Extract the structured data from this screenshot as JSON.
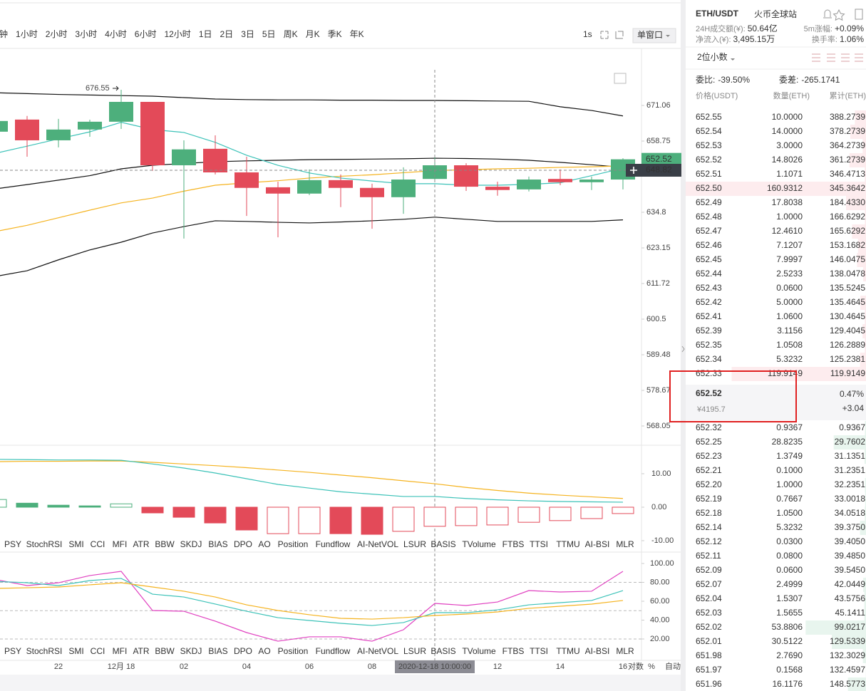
{
  "toolbar": {
    "periods": [
      "钟",
      "1小时",
      "2小时",
      "3小时",
      "4小时",
      "6小时",
      "12小时",
      "1日",
      "2日",
      "3日",
      "5日",
      "周K",
      "月K",
      "季K",
      "年K"
    ],
    "active": 1,
    "refresh": "1s",
    "window": "单窗口"
  },
  "kline": {
    "type": "candlestick",
    "log": true,
    "ylim": [
      562.4,
      683.6
    ],
    "yticks": [
      671.06,
      658.75,
      634.8,
      623.15,
      611.72,
      600.5,
      589.48,
      578.67,
      568.05
    ],
    "categories": [
      null,
      null,
      "22",
      null,
      "12月 18",
      null,
      "02",
      null,
      "04",
      null,
      "06",
      null,
      "08",
      null,
      "2020-12-18 10:00:00",
      null,
      "12",
      null,
      "14",
      null,
      "16"
    ],
    "open": [
      661.96,
      666.14,
      659.0,
      662.7,
      665.4,
      672.3,
      650.5,
      656.1,
      648.1,
      643.1,
      641.0,
      645.5,
      642.9,
      639.8,
      645.9,
      650.5,
      643.3,
      642.4,
      645.9,
      644.8,
      645.7
    ],
    "high": [
      668.1,
      667.4,
      666.4,
      666.1,
      676.55,
      672.3,
      659.0,
      660.7,
      653.4,
      645.0,
      649.1,
      647.4,
      644.3,
      649.8,
      653.9,
      651.2,
      645.0,
      646.7,
      649.1,
      646.7,
      652.9
    ],
    "low": [
      659.5,
      653.4,
      656.6,
      660.2,
      662.9,
      648.6,
      626.2,
      647.4,
      633.6,
      626.6,
      640.5,
      636.5,
      629.4,
      634.3,
      645.7,
      641.9,
      640.3,
      641.7,
      643.8,
      642.2,
      642.4
    ],
    "close": [
      665.65,
      659.0,
      662.7,
      665.4,
      672.3,
      650.5,
      655.9,
      648.1,
      642.9,
      641.0,
      645.5,
      642.9,
      639.8,
      645.7,
      650.5,
      643.3,
      642.2,
      645.7,
      644.8,
      645.7,
      652.52
    ],
    "up_color": "#4daf7c",
    "down_color": "#e34a59",
    "lines": [
      {
        "color": "#111111",
        "values": [
          675.5,
          675.2,
          674.9,
          674.7,
          674.5,
          674.3,
          673.8,
          673.3,
          673.1,
          673.0,
          673.0,
          672.9,
          672.9,
          672.8,
          672.8,
          672.7,
          672.6,
          672.5,
          670.6,
          669.3,
          667.4
        ]
      },
      {
        "color": "#111111",
        "values": [
          642.6,
          644.0,
          645.5,
          647.0,
          649.3,
          650.5,
          651.1,
          651.7,
          652.0,
          652.2,
          652.4,
          652.5,
          652.6,
          652.7,
          652.9,
          652.8,
          652.6,
          652.2,
          651.5,
          650.7,
          649.8
        ]
      },
      {
        "color": "#111111",
        "values": [
          614.0,
          615.8,
          619.3,
          622.5,
          625.0,
          628.0,
          630.1,
          632.0,
          631.8,
          631.5,
          631.3,
          631.6,
          632.0,
          632.5,
          633.2,
          632.5,
          631.8,
          631.8,
          631.8,
          631.8,
          632.3
        ]
      },
      {
        "color": "#f5b31f",
        "values": [
          628.5,
          630.5,
          633.0,
          635.5,
          637.9,
          639.5,
          641.8,
          643.8,
          644.6,
          645.3,
          646.2,
          646.8,
          647.3,
          648.0,
          648.7,
          649.0,
          649.3,
          649.5,
          649.8,
          650.0,
          650.3
        ]
      },
      {
        "color": "#3cc2b8",
        "values": [
          654.6,
          657.0,
          659.5,
          661.9,
          665.2,
          662.7,
          661.7,
          658.3,
          653.9,
          650.5,
          647.9,
          646.2,
          645.2,
          644.3,
          644.3,
          643.8,
          643.8,
          644.1,
          644.6,
          647.0,
          649.5
        ]
      }
    ],
    "last": 652.52,
    "crosshair_price": 648.82,
    "crosshair_index": 14
  },
  "macd": {
    "ylim": [
      -13.4,
      18.5
    ],
    "yticks": [
      {
        "value": 10,
        "label": "10.00"
      },
      {
        "value": 0,
        "label": "0.00"
      },
      {
        "value": -10,
        "label": "-10.00"
      }
    ],
    "histogram": [
      2.3,
      1.2,
      0.6,
      0.4,
      1.0,
      -1.7,
      -3.0,
      -4.7,
      -6.8,
      -7.9,
      -7.9,
      -7.9,
      -8.1,
      -7.2,
      -5.7,
      -5.5,
      -5.3,
      -4.5,
      -4.0,
      -3.4,
      -1.9
    ],
    "filled": [
      false,
      true,
      true,
      true,
      false,
      true,
      true,
      true,
      true,
      false,
      false,
      true,
      true,
      false,
      false,
      false,
      false,
      false,
      false,
      false,
      false
    ],
    "series": [
      {
        "color": "#f5b31f",
        "values": [
          13.6,
          13.7,
          13.7,
          13.8,
          13.8,
          13.4,
          12.9,
          12.4,
          11.8,
          11.1,
          10.4,
          9.6,
          8.8,
          7.9,
          7.0,
          5.9,
          5.0,
          4.2,
          3.6,
          3.1,
          2.6
        ]
      },
      {
        "color": "#3cc2b8",
        "values": [
          14.3,
          14.2,
          14.1,
          14.1,
          14.0,
          12.9,
          11.7,
          10.2,
          8.5,
          6.8,
          5.7,
          4.6,
          3.9,
          3.2,
          3.2,
          2.6,
          2.2,
          1.9,
          1.7,
          1.6,
          1.5
        ]
      }
    ]
  },
  "osc": {
    "ylim": [
      -4.9,
      108.3
    ],
    "yticks": [
      {
        "value": 100,
        "label": "100.00"
      },
      {
        "value": 80,
        "label": "80.00"
      },
      {
        "value": 60,
        "label": "60.00"
      },
      {
        "value": 40,
        "label": "40.00"
      },
      {
        "value": 20,
        "label": "20.00"
      }
    ],
    "levels": [
      80,
      50,
      20
    ],
    "series": [
      {
        "color": "#e040c0",
        "values": [
          83.0,
          76.6,
          79.6,
          87.2,
          91.7,
          50.2,
          49.4,
          38.9,
          26.8,
          17.7,
          22.3,
          22.3,
          17.7,
          29.8,
          57.7,
          55.5,
          59.2,
          71.3,
          69.8,
          70.6,
          91.7
        ]
      },
      {
        "color": "#3cc2b8",
        "values": [
          81.0,
          79.6,
          76.6,
          81.9,
          84.2,
          67.5,
          64.5,
          57.0,
          49.4,
          42.6,
          39.6,
          36.6,
          34.3,
          37.4,
          47.9,
          47.9,
          50.9,
          56.2,
          58.5,
          60.8,
          71.3
        ]
      },
      {
        "color": "#f5b31f",
        "values": [
          73.6,
          74.3,
          75.1,
          77.4,
          79.6,
          75.1,
          70.6,
          64.5,
          56.2,
          50.2,
          45.7,
          41.9,
          41.1,
          42.6,
          44.9,
          46.4,
          48.7,
          52.5,
          54.7,
          57.0,
          60.8
        ]
      }
    ]
  },
  "indicators": [
    "PSY",
    "StochRSI",
    "SMI",
    "CCI",
    "MFI",
    "ATR",
    "BBW",
    "SKDJ",
    "BIAS",
    "DPO",
    "AO",
    "Position",
    "Fundflow",
    "AI-NetVOL",
    "LSUR",
    "BASIS",
    "TVolume",
    "FTBS",
    "TTSI",
    "TTMU",
    "AI-BSI",
    "MLR"
  ],
  "scale_options": [
    "对数",
    "%",
    "自动"
  ],
  "market": {
    "pair": "ETH/USDT",
    "exchange": "火币全球站",
    "turnover_label": "24H成交额(¥):",
    "turnover": "50.64亿",
    "change_label": "5m涨幅:",
    "change": "+0.09%",
    "inflow_label": "净流入(¥):",
    "inflow": "3,495.15万",
    "rate_label": "换手率:",
    "rate": "1.06%"
  },
  "orderbook": {
    "precision": "2位小数",
    "ratio_label": "委比:",
    "ratio": "-39.50%",
    "diff_label": "委差:",
    "diff": "-265.1741",
    "columns": [
      "价格(USDT)",
      "数量(ETH)",
      "累计(ETH)"
    ],
    "asks": [
      [
        "652.55",
        "10.0000",
        "388.2739"
      ],
      [
        "652.54",
        "14.0000",
        "378.2739"
      ],
      [
        "652.53",
        "3.0000",
        "364.2739"
      ],
      [
        "652.52",
        "14.8026",
        "361.2739"
      ],
      [
        "652.51",
        "1.1071",
        "346.4713"
      ],
      [
        "652.50",
        "160.9312",
        "345.3642"
      ],
      [
        "652.49",
        "17.8038",
        "184.4330"
      ],
      [
        "652.48",
        "1.0000",
        "166.6292"
      ],
      [
        "652.47",
        "12.4610",
        "165.6292"
      ],
      [
        "652.46",
        "7.1207",
        "153.1682"
      ],
      [
        "652.45",
        "7.9997",
        "146.0475"
      ],
      [
        "652.44",
        "2.5233",
        "138.0478"
      ],
      [
        "652.43",
        "0.0600",
        "135.5245"
      ],
      [
        "652.42",
        "5.0000",
        "135.4645"
      ],
      [
        "652.41",
        "1.0600",
        "130.4645"
      ],
      [
        "652.39",
        "3.1156",
        "129.4045"
      ],
      [
        "652.35",
        "1.0508",
        "126.2889"
      ],
      [
        "652.34",
        "5.3232",
        "125.2381"
      ],
      [
        "652.33",
        "119.9149",
        "119.9149"
      ]
    ],
    "last": "652.52",
    "cny": "¥4195.7",
    "pct": "0.47%",
    "chg": "+3.04",
    "bids": [
      [
        "652.32",
        "0.9367",
        "0.9367"
      ],
      [
        "652.25",
        "28.8235",
        "29.7602"
      ],
      [
        "652.23",
        "1.3749",
        "31.1351"
      ],
      [
        "652.21",
        "0.1000",
        "31.2351"
      ],
      [
        "652.20",
        "1.0000",
        "32.2351"
      ],
      [
        "652.19",
        "0.7667",
        "33.0018"
      ],
      [
        "652.18",
        "1.0500",
        "34.0518"
      ],
      [
        "652.14",
        "5.3232",
        "39.3750"
      ],
      [
        "652.12",
        "0.0300",
        "39.4050"
      ],
      [
        "652.11",
        "0.0800",
        "39.4850"
      ],
      [
        "652.09",
        "0.0600",
        "39.5450"
      ],
      [
        "652.07",
        "2.4999",
        "42.0449"
      ],
      [
        "652.04",
        "1.5307",
        "43.5756"
      ],
      [
        "652.03",
        "1.5655",
        "45.1411"
      ],
      [
        "652.02",
        "53.8806",
        "99.0217"
      ],
      [
        "652.01",
        "30.5122",
        "129.5339"
      ],
      [
        "651.98",
        "2.7690",
        "132.3029"
      ],
      [
        "651.97",
        "0.1568",
        "132.4597"
      ],
      [
        "651.96",
        "16.1176",
        "148.5773"
      ]
    ]
  }
}
